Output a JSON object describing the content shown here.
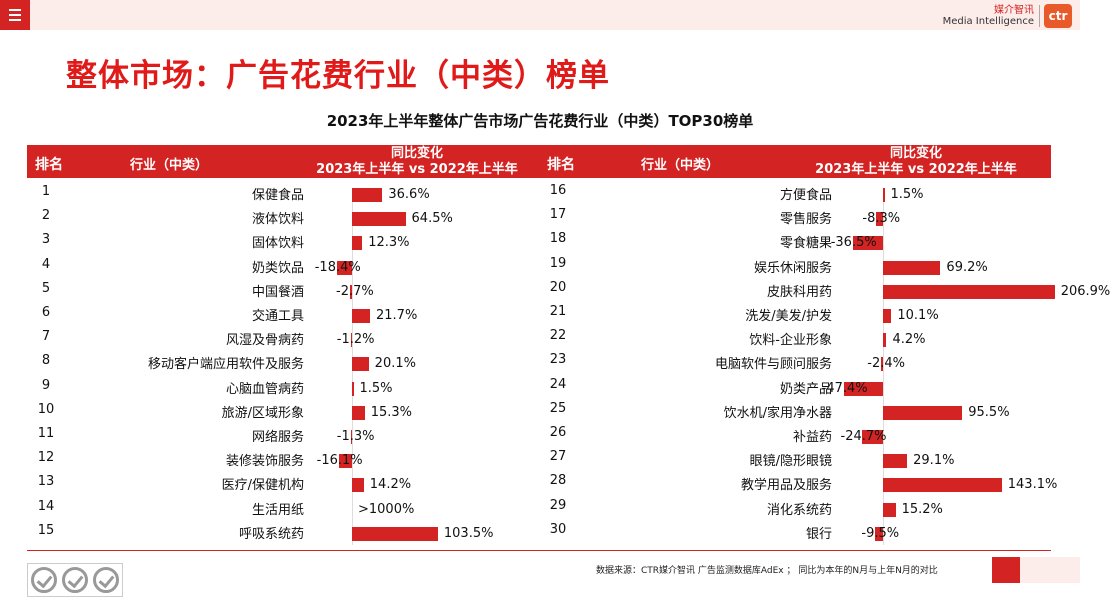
{
  "brand": {
    "name_cn": "媒介智讯",
    "name_en": "Media Intelligence",
    "logo_text": "ctr"
  },
  "page_title": "整体市场：广告花费行业（中类）榜单",
  "source_note": "数据来源：CTR媒介智讯 广告监测数据库AdEx ； 同比为本年的N月与上年N月的对比",
  "headers": {
    "rank": "排名",
    "industry": "行业（中类）",
    "change_line1": "同比变化",
    "change_line2": "2023年上半年 vs 2022年上半年"
  },
  "colors": {
    "accent": "#d42323",
    "title": "#e01919"
  },
  "chart_data": {
    "type": "bar",
    "title": "2023年上半年整体广告市场广告花费行业（中类）TOP30榜单",
    "xlabel": "同比变化 2023年上半年 vs 2022年上半年",
    "unit": "%",
    "rows": [
      {
        "rank": "1",
        "industry": "保健食品",
        "value": 36.6,
        "label": "36.6%"
      },
      {
        "rank": "2",
        "industry": "液体饮料",
        "value": 64.5,
        "label": "64.5%"
      },
      {
        "rank": "3",
        "industry": "固体饮料",
        "value": 12.3,
        "label": "12.3%"
      },
      {
        "rank": "4",
        "industry": "奶类饮品",
        "value": -18.4,
        "label": "-18.4%"
      },
      {
        "rank": "5",
        "industry": "中国餐酒",
        "value": -2.7,
        "label": "-2.7%"
      },
      {
        "rank": "6",
        "industry": "交通工具",
        "value": 21.7,
        "label": "21.7%"
      },
      {
        "rank": "7",
        "industry": "风湿及骨病药",
        "value": -1.2,
        "label": "-1.2%"
      },
      {
        "rank": "8",
        "industry": "移动客户端应用软件及服务",
        "value": 20.1,
        "label": "20.1%"
      },
      {
        "rank": "9",
        "industry": "心脑血管病药",
        "value": 1.5,
        "label": "1.5%"
      },
      {
        "rank": "10",
        "industry": "旅游/区域形象",
        "value": 15.3,
        "label": "15.3%"
      },
      {
        "rank": "11",
        "industry": "网络服务",
        "value": -1.3,
        "label": "-1.3%"
      },
      {
        "rank": "12",
        "industry": "装修装饰服务",
        "value": -16.1,
        "label": "-16.1%"
      },
      {
        "rank": "13",
        "industry": "医疗/保健机构",
        "value": 14.2,
        "label": "14.2%"
      },
      {
        "rank": "14",
        "industry": "生活用纸",
        "value": null,
        "label": ">1000%"
      },
      {
        "rank": "15",
        "industry": "呼吸系统药",
        "value": 103.5,
        "label": "103.5%"
      },
      {
        "rank": "16",
        "industry": "方便食品",
        "value": 1.5,
        "label": "1.5%"
      },
      {
        "rank": "17",
        "industry": "零售服务",
        "value": -8.3,
        "label": "-8.3%"
      },
      {
        "rank": "18",
        "industry": "零食糖果",
        "value": -36.5,
        "label": "-36.5%"
      },
      {
        "rank": "19",
        "industry": "娱乐休闲服务",
        "value": 69.2,
        "label": "69.2%"
      },
      {
        "rank": "20",
        "industry": "皮肤科用药",
        "value": 206.9,
        "label": "206.9%"
      },
      {
        "rank": "21",
        "industry": "洗发/美发/护发",
        "value": 10.1,
        "label": "10.1%"
      },
      {
        "rank": "22",
        "industry": "饮料-企业形象",
        "value": 4.2,
        "label": "4.2%"
      },
      {
        "rank": "23",
        "industry": "电脑软件与顾问服务",
        "value": -2.4,
        "label": "-2.4%"
      },
      {
        "rank": "24",
        "industry": "奶类产品",
        "value": -47.4,
        "label": "-47.4%"
      },
      {
        "rank": "25",
        "industry": "饮水机/家用净水器",
        "value": 95.5,
        "label": "95.5%"
      },
      {
        "rank": "26",
        "industry": "补益药",
        "value": -24.7,
        "label": "-24.7%"
      },
      {
        "rank": "27",
        "industry": "眼镜/隐形眼镜",
        "value": 29.1,
        "label": "29.1%"
      },
      {
        "rank": "28",
        "industry": "教学用品及服务",
        "value": 143.1,
        "label": "143.1%"
      },
      {
        "rank": "29",
        "industry": "消化系统药",
        "value": 15.2,
        "label": "15.2%"
      },
      {
        "rank": "30",
        "industry": "银行",
        "value": -9.5,
        "label": "-9.5%"
      }
    ]
  }
}
